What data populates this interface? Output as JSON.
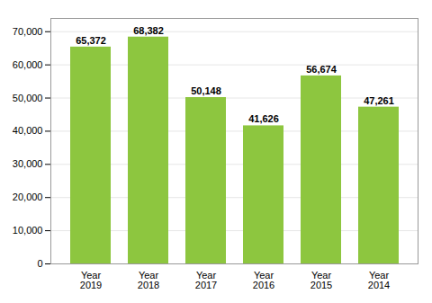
{
  "chart_data": {
    "type": "bar",
    "categories": [
      "Year\n2019",
      "Year\n2018",
      "Year\n2017",
      "Year\n2016",
      "Year\n2015",
      "Year\n2014"
    ],
    "values": [
      65372,
      68382,
      50148,
      41626,
      56674,
      47261
    ],
    "value_labels": [
      "65,372",
      "68,382",
      "50,148",
      "41,626",
      "56,674",
      "47,261"
    ],
    "data_labels": true,
    "color": "#8dc63f",
    "ylim": [
      0,
      74000
    ],
    "yticks": [
      0,
      {
        "value": 10000,
        "label": "10,000"
      },
      {
        "value": 20000,
        "label": "20,000"
      },
      {
        "value": 30000,
        "label": "30,000"
      },
      {
        "value": 40000,
        "label": "40,000"
      },
      {
        "value": 50000,
        "label": "50,000"
      },
      {
        "value": 60000,
        "label": "60,000"
      },
      {
        "value": 70000,
        "label": "70,000"
      }
    ],
    "grid": true
  }
}
